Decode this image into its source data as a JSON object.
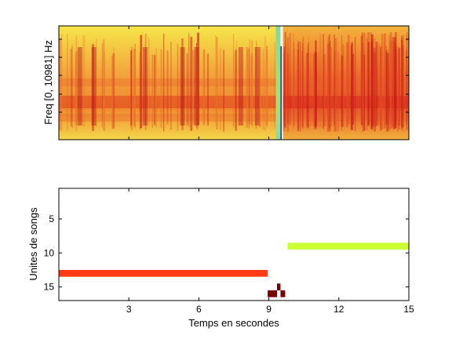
{
  "chart_data": [
    {
      "type": "heatmap",
      "title": "",
      "xlabel": "",
      "ylabel": "Freq [0, 10981] Hz",
      "xlim": [
        0,
        15
      ],
      "ylim": [
        0,
        10981
      ],
      "xticks": [],
      "yticks": [],
      "colormap": "hot-jet",
      "segments": [
        {
          "x_start": 0,
          "x_end": 9.3,
          "character": "warm dense striped (yellow-orange with red bands)"
        },
        {
          "x_start": 9.3,
          "x_end": 9.5,
          "character": "low-energy green/cyan"
        },
        {
          "x_start": 9.5,
          "x_end": 9.55,
          "character": "dark blue vertical line"
        },
        {
          "x_start": 9.6,
          "x_end": 15,
          "character": "dense red-orange with many vertical stripes"
        }
      ]
    },
    {
      "type": "bar",
      "title": "",
      "xlabel": "Temps en secondes",
      "ylabel": "Unites de songs",
      "xlim": [
        0,
        15
      ],
      "ylim": [
        0.5,
        17
      ],
      "y_reversed": true,
      "xticks": [
        "3",
        "6",
        "9",
        "12",
        "15"
      ],
      "yticks": [
        "5",
        "10",
        "15"
      ],
      "segments": [
        {
          "unit": 13,
          "x_start": 0,
          "x_end": 8.95,
          "color": "#ff3a14"
        },
        {
          "unit": 16,
          "x_start": 8.95,
          "x_end": 9.35,
          "color": "#7a0000"
        },
        {
          "unit": 15,
          "x_start": 9.35,
          "x_end": 9.5,
          "color": "#7a0000"
        },
        {
          "unit": 16,
          "x_start": 9.5,
          "x_end": 9.7,
          "color": "#7a0000"
        },
        {
          "unit": 9,
          "x_start": 9.8,
          "x_end": 15,
          "color": "#ccff33"
        }
      ]
    }
  ]
}
